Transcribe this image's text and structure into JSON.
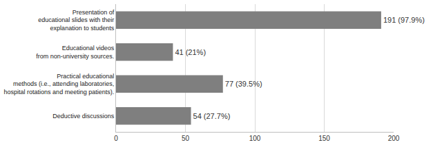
{
  "chart_data": {
    "type": "bar",
    "orientation": "horizontal",
    "categories": [
      "Presentation of\neducational slides with their\nexplanation to students",
      "Educational videos\nfrom non-university sources.",
      "Practical educational\nmethods (i.e., attending laboratories,\nhospital rotations and meeting patients).",
      "Deductive discussions"
    ],
    "values": [
      191,
      41,
      77,
      54
    ],
    "value_labels": [
      "191 (97.9%)",
      "41 (21%)",
      "77 (39.5%)",
      "54 (27.7%)"
    ],
    "color": "#7f7f7f",
    "xlim": [
      0,
      200
    ],
    "xticks": [
      0,
      50,
      100,
      150,
      200
    ],
    "grid": true,
    "data_labels": true
  }
}
